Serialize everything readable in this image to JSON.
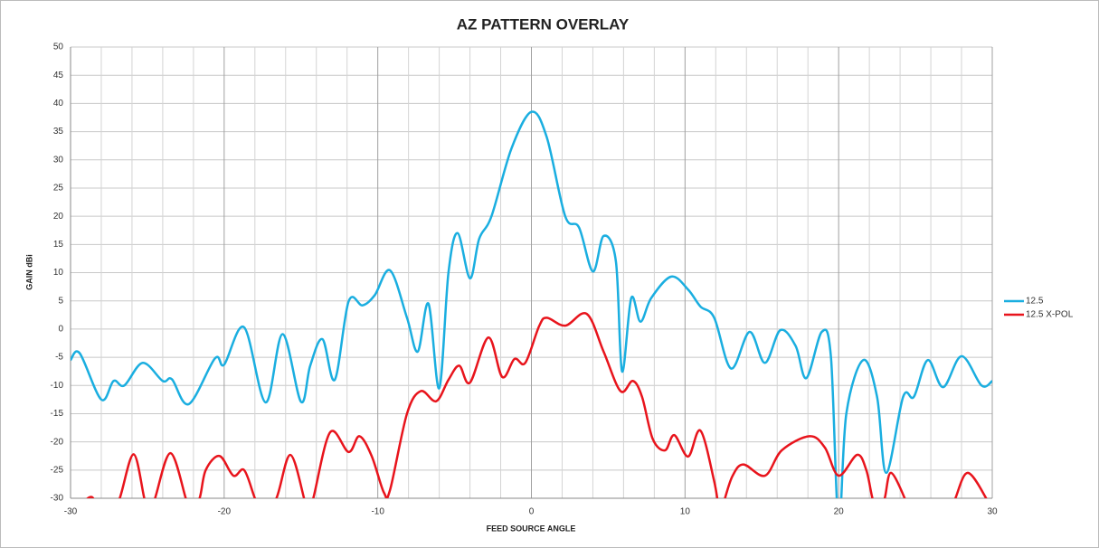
{
  "chart_data": {
    "type": "line",
    "title": "AZ PATTERN OVERLAY",
    "x_label": "FEED SOURCE ANGLE",
    "y_label": "GAIN dBi",
    "xlim": [
      -30,
      30
    ],
    "ylim": [
      -30,
      50
    ],
    "xticks": [
      -30,
      -20,
      -10,
      0,
      10,
      20,
      30
    ],
    "xminorticks": [
      -28,
      -26,
      -24,
      -22,
      -18,
      -16,
      -14,
      -12,
      -8,
      -6,
      -4,
      -2,
      2,
      4,
      6,
      8,
      12,
      14,
      16,
      18,
      22,
      24,
      26,
      28
    ],
    "yticks": [
      -30,
      -25,
      -20,
      -15,
      -10,
      -5,
      0,
      5,
      10,
      15,
      20,
      25,
      30,
      35,
      40,
      45,
      50
    ],
    "grid": true,
    "legend": "right",
    "series": [
      {
        "name": "12.5",
        "color": "#1aaee0",
        "x": [
          -30,
          -29.4,
          -28,
          -27.2,
          -26.5,
          -25.3,
          -24,
          -23.4,
          -22.3,
          -20.6,
          -20,
          -18.7,
          -17.3,
          -16.2,
          -15,
          -14.4,
          -13.6,
          -12.8,
          -11.9,
          -11,
          -10.2,
          -9.2,
          -8.1,
          -7.4,
          -6.7,
          -6,
          -5.4,
          -4.8,
          -4,
          -3.4,
          -2.6,
          -1.3,
          0,
          1,
          2.2,
          3.1,
          4,
          4.7,
          5.5,
          5.9,
          6.5,
          7.1,
          7.8,
          9.1,
          10.2,
          11,
          11.9,
          13,
          14.2,
          15.2,
          16.2,
          17.2,
          17.9,
          18.9,
          19.5,
          20,
          20.5,
          21.6,
          22.5,
          23.1,
          24.2,
          24.9,
          25.8,
          26.8,
          28,
          29.3,
          30
        ],
        "values": [
          -5.5,
          -4.3,
          -12.5,
          -9.2,
          -10,
          -6,
          -9.2,
          -8.9,
          -13.3,
          -5.2,
          -6.3,
          0.3,
          -13,
          -0.9,
          -12.9,
          -6.5,
          -1.8,
          -9,
          4.9,
          4.2,
          6,
          10.4,
          2,
          -4,
          4.5,
          -10.5,
          10,
          17,
          9,
          16,
          20,
          32,
          38.5,
          34,
          20,
          18,
          10.2,
          16.5,
          12,
          -7.5,
          5.5,
          1.3,
          5.5,
          9.3,
          7,
          4,
          2,
          -7,
          -0.5,
          -6,
          -0.2,
          -3,
          -8.7,
          -0.5,
          -5,
          -35,
          -15,
          -5.5,
          -12,
          -25.5,
          -12,
          -12,
          -5.5,
          -10.3,
          -4.8,
          -10,
          -9.2
        ]
      },
      {
        "name": "12.5 X-POL",
        "color": "#e8141c",
        "x": [
          -29.1,
          -28.6,
          -28.1,
          -27.4,
          -26.8,
          -25.9,
          -25.2,
          -24.9,
          -24.5,
          -23.5,
          -22.5,
          -22.2,
          -21.6,
          -21.2,
          -20.3,
          -19.4,
          -18.7,
          -18,
          -17.5,
          -16.6,
          -15.7,
          -14.8,
          -14.6,
          -14.2,
          -13.1,
          -11.9,
          -11.2,
          -10.4,
          -9.6,
          -9.2,
          -8.1,
          -7.2,
          -6.2,
          -5.4,
          -4.7,
          -4,
          -2.8,
          -1.9,
          -1.1,
          -0.4,
          0.5,
          1,
          2.2,
          3.6,
          4.7,
          5.8,
          6.6,
          7.2,
          7.9,
          8.7,
          9.3,
          10.2,
          11,
          11.9,
          12.3,
          12.6,
          13.1,
          13.8,
          15.2,
          16.3,
          18.1,
          19.1,
          20,
          21.2,
          21.8,
          22.2,
          22.6,
          23,
          23.4,
          24.3,
          24.6,
          25.8,
          27.2,
          27.6,
          28.4,
          29.6,
          30
        ],
        "values": [
          -30.5,
          -29.8,
          -32,
          -33,
          -30,
          -22.2,
          -30,
          -33,
          -30,
          -22,
          -30,
          -33,
          -30,
          -25,
          -22.5,
          -26,
          -25,
          -30,
          -33,
          -30,
          -22.3,
          -30,
          -33,
          -30,
          -18.3,
          -21.8,
          -19,
          -22.5,
          -29,
          -28.5,
          -15,
          -11,
          -12.8,
          -9,
          -6.5,
          -9.5,
          -1.5,
          -8.5,
          -5.3,
          -6,
          0.5,
          2,
          0.6,
          2.7,
          -4,
          -11,
          -9.2,
          -12,
          -19.5,
          -21.5,
          -18.8,
          -22.6,
          -18,
          -27,
          -33,
          -30,
          -26,
          -24,
          -26,
          -21.5,
          -19,
          -21,
          -26,
          -22.3,
          -25,
          -30,
          -33,
          -30,
          -25.5,
          -30,
          -33,
          -34,
          -33,
          -30,
          -25.5,
          -30,
          -33
        ]
      }
    ]
  }
}
